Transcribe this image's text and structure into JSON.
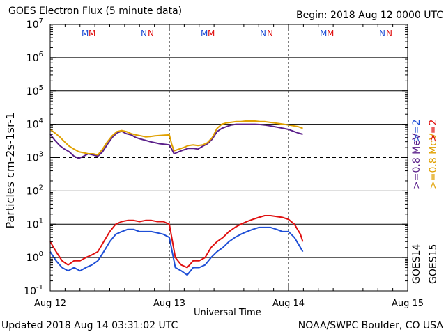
{
  "header": {
    "title": "GOES Electron Flux (5 minute data)",
    "begin": "Begin: 2018 Aug 12 0000 UTC"
  },
  "footer": {
    "updated": "Updated 2018 Aug 14 03:31:02 UTC",
    "credit": "NOAA/SWPC Boulder, CO USA"
  },
  "chart_data": {
    "type": "line",
    "title": "GOES Electron Flux (5 minute data)",
    "xlabel": "Universal Time",
    "ylabel": "Particles cm-2s-1sr-1",
    "yscale": "log",
    "ylim": [
      0.1,
      10000000
    ],
    "xlim": [
      "2018-08-12 00:00",
      "2018-08-15 00:00"
    ],
    "x_tick_labels": [
      "Aug 12",
      "Aug 13",
      "Aug 14",
      "Aug 15"
    ],
    "y_tick_labels": [
      "10^-1",
      "10^0",
      "10^1",
      "10^2",
      "10^3",
      "10^4",
      "10^5",
      "10^6",
      "10^7"
    ],
    "threshold": {
      "value": 1000,
      "style": "dashed"
    },
    "grid": "horizontal lines at each decade",
    "legend_position": "right, rotated vertical",
    "legend": [
      {
        "name": "GOES14",
        "color": "#000000"
      },
      {
        "name": ">=0.8 MeV",
        "color": "#5a1f8a"
      },
      {
        "name": ">=2",
        "color": "#1f4fd6"
      },
      {
        "name": "GOES15",
        "color": "#000000"
      },
      {
        "name": ">=0.8 MeV",
        "color": "#e0a000"
      },
      {
        "name": ">=2",
        "color": "#e01010"
      }
    ],
    "markers": [
      {
        "day": 0,
        "labels": [
          {
            "text": "M",
            "color": "#1f4fd6"
          },
          {
            "text": "M",
            "color": "#e01010"
          },
          {
            "text": "N",
            "color": "#1f4fd6"
          },
          {
            "text": "N",
            "color": "#e01010"
          }
        ]
      },
      {
        "day": 1,
        "labels": [
          {
            "text": "M",
            "color": "#1f4fd6"
          },
          {
            "text": "M",
            "color": "#e01010"
          },
          {
            "text": "N",
            "color": "#1f4fd6"
          },
          {
            "text": "N",
            "color": "#e01010"
          }
        ]
      },
      {
        "day": 2,
        "labels": [
          {
            "text": "M",
            "color": "#1f4fd6"
          },
          {
            "text": "M",
            "color": "#e01010"
          },
          {
            "text": "N",
            "color": "#1f4fd6"
          },
          {
            "text": "N",
            "color": "#e01010"
          }
        ]
      }
    ],
    "series": [
      {
        "name": "GOES14 >=0.8 MeV",
        "color": "#5a1f8a",
        "x": [
          0,
          0.04,
          0.08,
          0.12,
          0.16,
          0.2,
          0.24,
          0.28,
          0.32,
          0.36,
          0.4,
          0.44,
          0.48,
          0.52,
          0.56,
          0.6,
          0.64,
          0.68,
          0.72,
          0.76,
          0.8,
          0.84,
          0.88,
          0.92,
          0.96,
          1.0,
          1.02,
          1.04,
          1.08,
          1.12,
          1.16,
          1.2,
          1.24,
          1.28,
          1.32,
          1.36,
          1.4,
          1.44,
          1.48,
          1.52,
          1.56,
          1.6,
          1.64,
          1.68,
          1.72,
          1.76,
          1.8,
          1.84,
          1.88,
          1.92,
          1.96,
          2.0,
          2.04,
          2.08,
          2.12
        ],
        "y": [
          5000,
          3300,
          2300,
          1800,
          1500,
          1100,
          950,
          1100,
          1300,
          1200,
          1100,
          1500,
          2500,
          4000,
          5500,
          6200,
          5200,
          4800,
          4000,
          3600,
          3300,
          3000,
          2800,
          2600,
          2500,
          2400,
          1800,
          1300,
          1500,
          1700,
          1900,
          1900,
          1800,
          2200,
          2600,
          3600,
          6000,
          7500,
          8500,
          9500,
          10000,
          10000,
          10000,
          10000,
          10000,
          9800,
          9500,
          9000,
          8500,
          8000,
          7500,
          7000,
          6200,
          5500,
          5000
        ]
      },
      {
        "name": "GOES15 >=0.8 MeV",
        "color": "#e0a000",
        "x": [
          0,
          0.04,
          0.08,
          0.12,
          0.16,
          0.2,
          0.24,
          0.28,
          0.32,
          0.36,
          0.4,
          0.44,
          0.48,
          0.52,
          0.56,
          0.6,
          0.64,
          0.68,
          0.72,
          0.76,
          0.8,
          0.84,
          0.88,
          0.92,
          0.96,
          1.0,
          1.02,
          1.04,
          1.08,
          1.12,
          1.16,
          1.2,
          1.24,
          1.28,
          1.32,
          1.36,
          1.4,
          1.44,
          1.48,
          1.52,
          1.56,
          1.6,
          1.64,
          1.68,
          1.72,
          1.76,
          1.8,
          1.84,
          1.88,
          1.92,
          1.96,
          2.0,
          2.04,
          2.08,
          2.12
        ],
        "y": [
          7000,
          5500,
          4200,
          3000,
          2200,
          1800,
          1500,
          1400,
          1300,
          1300,
          1200,
          1800,
          3000,
          4500,
          6000,
          6500,
          6000,
          5200,
          4800,
          4500,
          4200,
          4300,
          4500,
          4600,
          4700,
          4800,
          2500,
          1600,
          1800,
          2000,
          2300,
          2400,
          2300,
          2400,
          2800,
          4000,
          7500,
          10000,
          11000,
          11500,
          12000,
          12000,
          12500,
          12500,
          12500,
          12000,
          12000,
          11500,
          11000,
          10500,
          10000,
          9500,
          9000,
          8500,
          7500
        ]
      },
      {
        "name": "GOES14 >=2 MeV",
        "color": "#1f4fd6",
        "x": [
          0,
          0.05,
          0.1,
          0.15,
          0.2,
          0.25,
          0.3,
          0.35,
          0.4,
          0.45,
          0.5,
          0.55,
          0.6,
          0.65,
          0.7,
          0.75,
          0.8,
          0.85,
          0.9,
          0.95,
          1.0,
          1.05,
          1.1,
          1.15,
          1.2,
          1.25,
          1.3,
          1.35,
          1.4,
          1.45,
          1.5,
          1.55,
          1.6,
          1.65,
          1.7,
          1.75,
          1.8,
          1.85,
          1.9,
          1.95,
          2.0,
          2.05,
          2.1,
          2.12
        ],
        "y": [
          1.5,
          0.8,
          0.5,
          0.4,
          0.5,
          0.4,
          0.5,
          0.6,
          0.8,
          1.5,
          3,
          5,
          6,
          7,
          7,
          6,
          6,
          6,
          5.5,
          5,
          4,
          0.5,
          0.4,
          0.3,
          0.5,
          0.5,
          0.6,
          1.0,
          1.5,
          2,
          3,
          4,
          5,
          6,
          7,
          8,
          8,
          8,
          7,
          6,
          6,
          4,
          2,
          1.5
        ]
      },
      {
        "name": "GOES15 >=2 MeV",
        "color": "#e01010",
        "x": [
          0,
          0.05,
          0.1,
          0.15,
          0.2,
          0.25,
          0.3,
          0.35,
          0.4,
          0.45,
          0.5,
          0.55,
          0.6,
          0.65,
          0.7,
          0.75,
          0.8,
          0.85,
          0.9,
          0.95,
          1.0,
          1.05,
          1.1,
          1.15,
          1.2,
          1.25,
          1.3,
          1.35,
          1.4,
          1.45,
          1.5,
          1.55,
          1.6,
          1.65,
          1.7,
          1.75,
          1.8,
          1.85,
          1.9,
          1.95,
          2.0,
          2.05,
          2.1,
          2.12
        ],
        "y": [
          3,
          1.5,
          0.8,
          0.6,
          0.8,
          0.8,
          1.0,
          1.2,
          1.5,
          3,
          6,
          10,
          12,
          13,
          13,
          12,
          13,
          13,
          12,
          12,
          10,
          1.0,
          0.6,
          0.5,
          0.8,
          0.8,
          1.0,
          2,
          3,
          4,
          6,
          8,
          10,
          12,
          14,
          16,
          18,
          18,
          17,
          16,
          14,
          10,
          5,
          3
        ]
      }
    ]
  }
}
